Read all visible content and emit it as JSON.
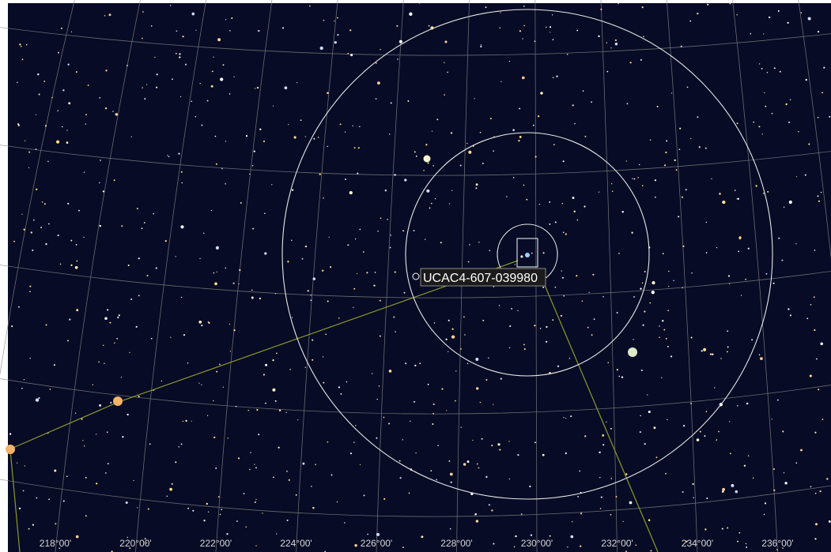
{
  "target": {
    "label": "UCAC4-607-039980"
  },
  "axis": {
    "labels": [
      "218°00'",
      "220°00'",
      "222°00'",
      "224°00'",
      "226°00'",
      "228°00'",
      "230°00'",
      "232°00'",
      "234°00'",
      "236°00'"
    ]
  }
}
